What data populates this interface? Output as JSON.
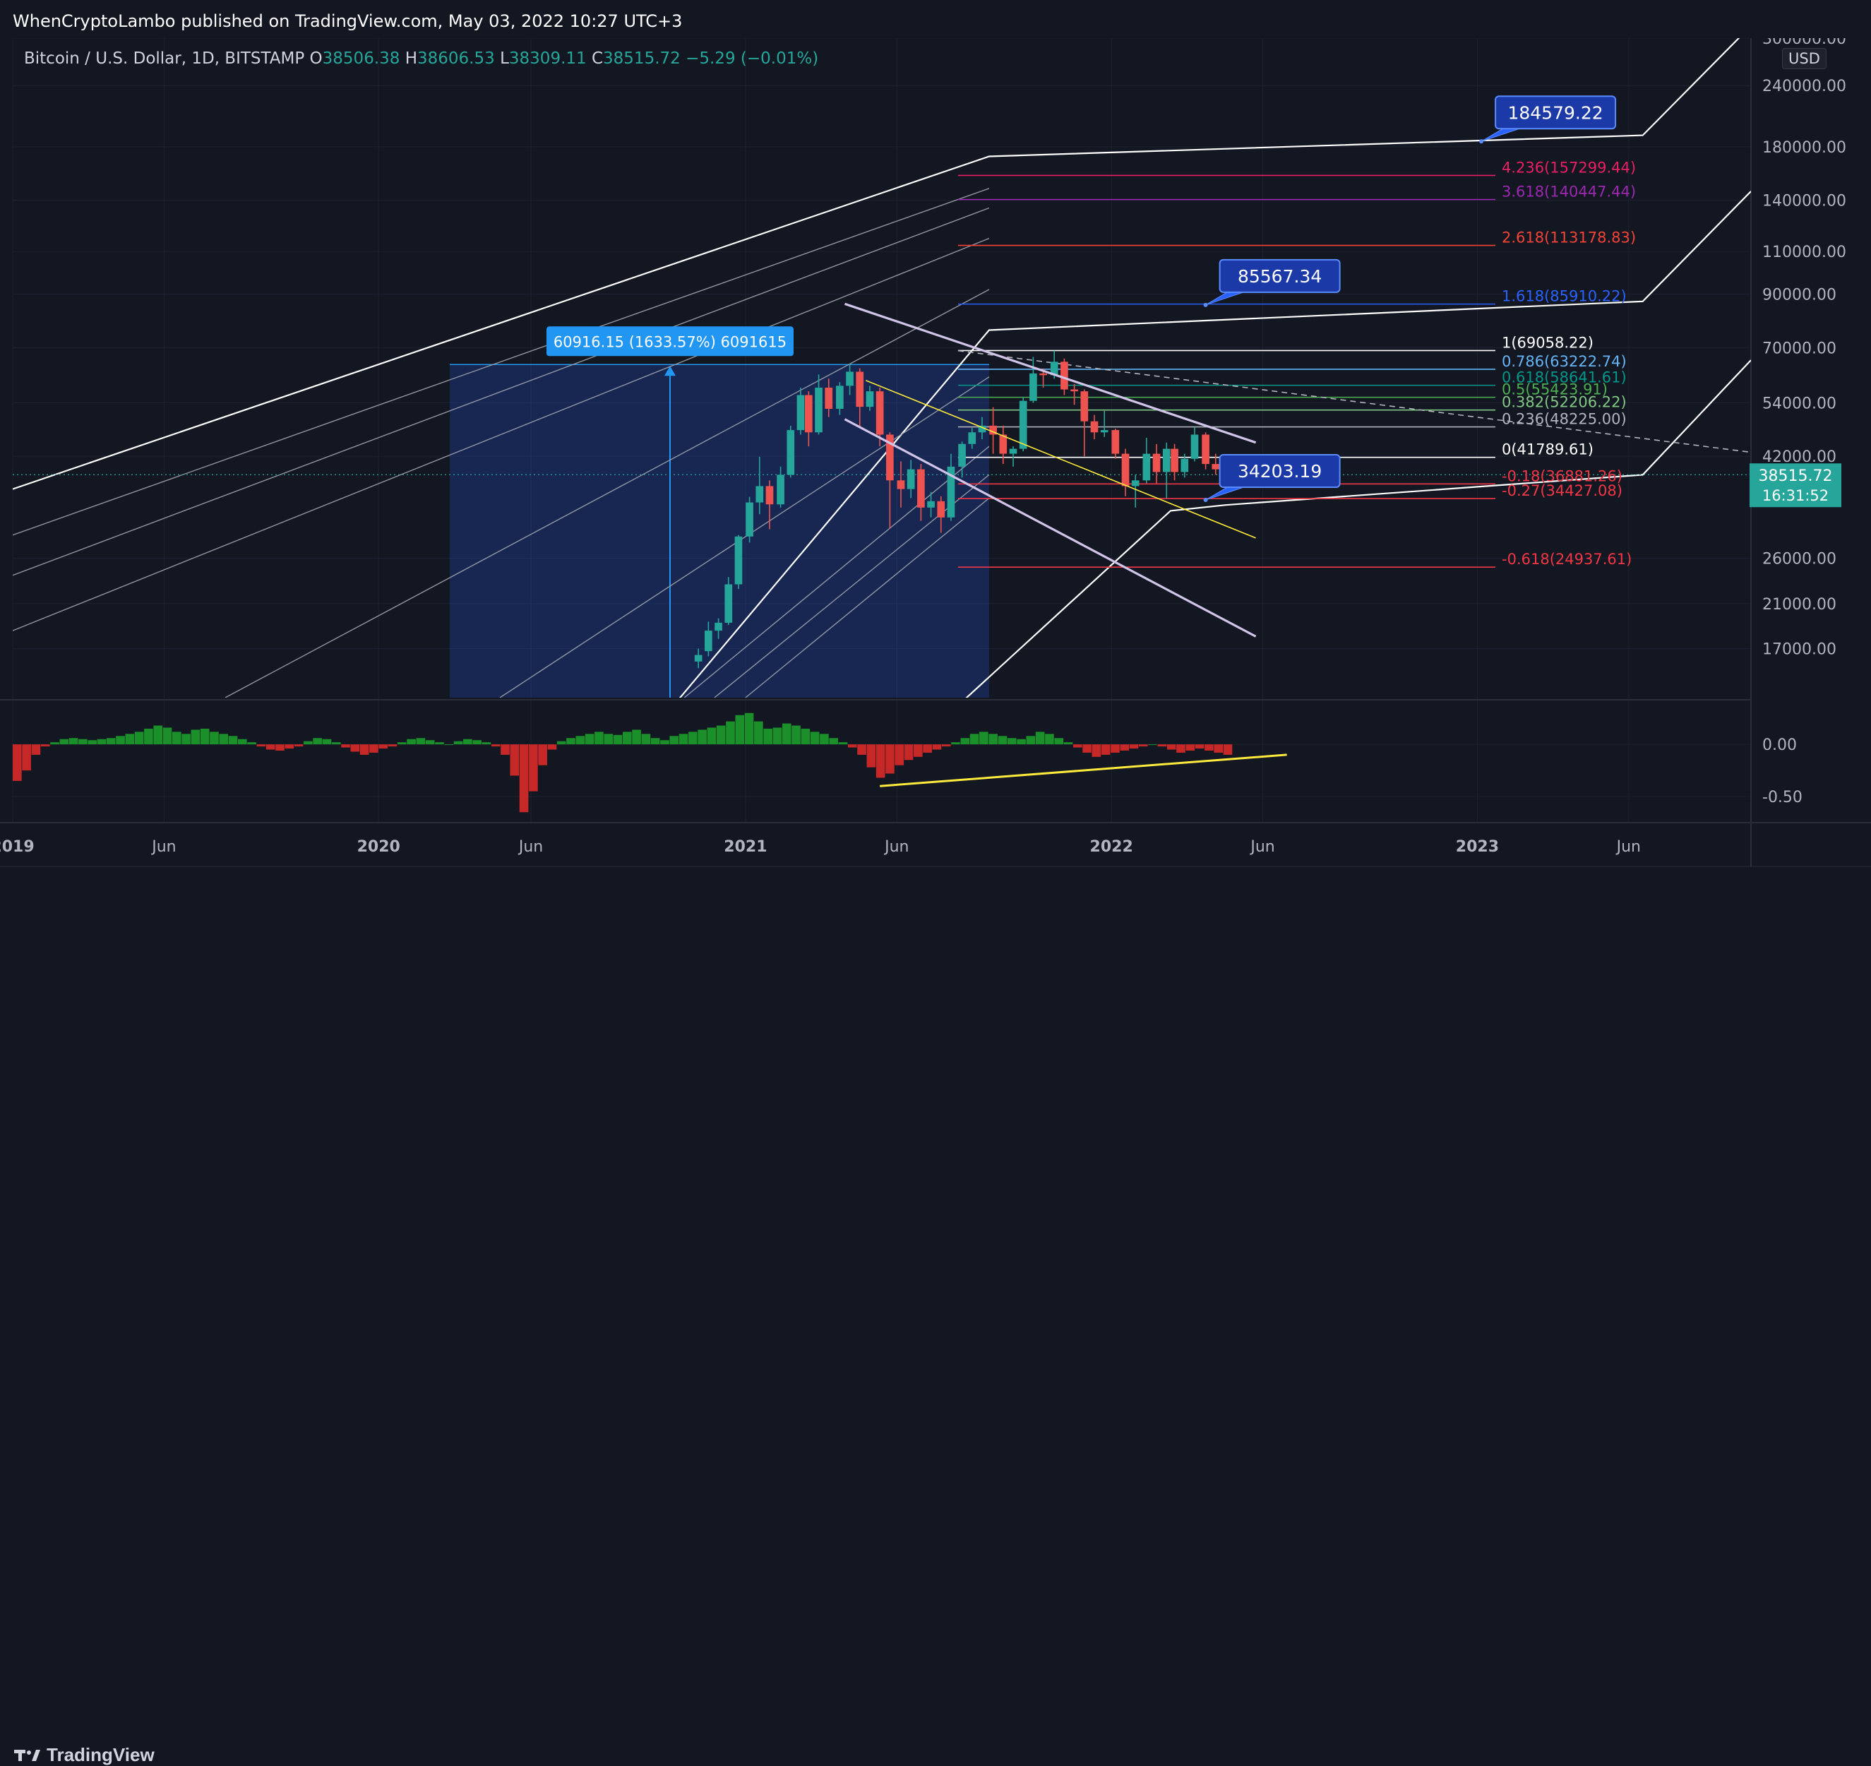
{
  "header": {
    "publisher": "WhenCryptoLambo published on TradingView.com, May 03, 2022 10:27 UTC+3"
  },
  "symbol": {
    "name": "Bitcoin / U.S. Dollar, 1D, BITSTAMP",
    "open_key": "O",
    "open": "38506.38",
    "high_key": "H",
    "high": "38606.53",
    "low_key": "L",
    "low": "38309.11",
    "close_key": "C",
    "close": "38515.72",
    "change": "−5.29 (−0.01%)"
  },
  "currency_label": "USD",
  "footer": {
    "brand": "TradingView"
  },
  "chart_data": {
    "type": "candlestick",
    "price_scale": "log",
    "ylim": [
      13500,
      300000
    ],
    "y_ticks": [
      "300000.00",
      "240000.00",
      "180000.00",
      "140000.00",
      "110000.00",
      "90000.00",
      "70000.00",
      "54000.00",
      "42000.00",
      "26000.00",
      "21000.00",
      "17000.00"
    ],
    "x_range": [
      "2019-01-01",
      "2023-10-01"
    ],
    "x_ticks": [
      {
        "label": "2019",
        "date": "2019-01-01"
      },
      {
        "label": "Jun",
        "date": "2019-06-01"
      },
      {
        "label": "2020",
        "date": "2020-01-01"
      },
      {
        "label": "Jun",
        "date": "2020-06-01"
      },
      {
        "label": "2021",
        "date": "2021-01-01"
      },
      {
        "label": "Jun",
        "date": "2021-06-01"
      },
      {
        "label": "2022",
        "date": "2022-01-01"
      },
      {
        "label": "Jun",
        "date": "2022-06-01"
      },
      {
        "label": "2023",
        "date": "2023-01-01"
      },
      {
        "label": "Jun",
        "date": "2023-06-01"
      }
    ],
    "candles": [
      {
        "date": "2020-11-15",
        "open": 16000,
        "high": 17000,
        "low": 15500,
        "close": 16500
      },
      {
        "date": "2020-11-25",
        "open": 16800,
        "high": 19300,
        "low": 16400,
        "close": 18500
      },
      {
        "date": "2020-12-05",
        "open": 18500,
        "high": 19600,
        "low": 17800,
        "close": 19200
      },
      {
        "date": "2020-12-15",
        "open": 19200,
        "high": 23800,
        "low": 19000,
        "close": 23000
      },
      {
        "date": "2020-12-25",
        "open": 23000,
        "high": 29000,
        "low": 22500,
        "close": 28800
      },
      {
        "date": "2021-01-05",
        "open": 28800,
        "high": 34700,
        "low": 28000,
        "close": 33800
      },
      {
        "date": "2021-01-15",
        "open": 33800,
        "high": 41900,
        "low": 32000,
        "close": 36500
      },
      {
        "date": "2021-01-25",
        "open": 36500,
        "high": 37500,
        "low": 29800,
        "close": 33500
      },
      {
        "date": "2021-02-05",
        "open": 33500,
        "high": 40000,
        "low": 33000,
        "close": 38500
      },
      {
        "date": "2021-02-15",
        "open": 38500,
        "high": 48500,
        "low": 38000,
        "close": 47500
      },
      {
        "date": "2021-02-25",
        "open": 47500,
        "high": 58000,
        "low": 46500,
        "close": 56000
      },
      {
        "date": "2021-03-05",
        "open": 56000,
        "high": 57000,
        "low": 44000,
        "close": 47000
      },
      {
        "date": "2021-03-15",
        "open": 47000,
        "high": 61700,
        "low": 46500,
        "close": 58000
      },
      {
        "date": "2021-03-25",
        "open": 58000,
        "high": 60500,
        "low": 50500,
        "close": 52500
      },
      {
        "date": "2021-04-05",
        "open": 52500,
        "high": 59500,
        "low": 51000,
        "close": 58500
      },
      {
        "date": "2021-04-15",
        "open": 58500,
        "high": 64800,
        "low": 56000,
        "close": 62500
      },
      {
        "date": "2021-04-25",
        "open": 62500,
        "high": 63500,
        "low": 48000,
        "close": 53000
      },
      {
        "date": "2021-05-05",
        "open": 53000,
        "high": 58500,
        "low": 52000,
        "close": 57000
      },
      {
        "date": "2021-05-15",
        "open": 57000,
        "high": 58000,
        "low": 44000,
        "close": 46500
      },
      {
        "date": "2021-05-25",
        "open": 46500,
        "high": 47000,
        "low": 30000,
        "close": 37500
      },
      {
        "date": "2021-06-05",
        "open": 37500,
        "high": 41000,
        "low": 33000,
        "close": 36000
      },
      {
        "date": "2021-06-15",
        "open": 36000,
        "high": 41300,
        "low": 34500,
        "close": 39500
      },
      {
        "date": "2021-06-25",
        "open": 39500,
        "high": 40500,
        "low": 31000,
        "close": 33000
      },
      {
        "date": "2021-07-05",
        "open": 33000,
        "high": 35500,
        "low": 31500,
        "close": 34000
      },
      {
        "date": "2021-07-15",
        "open": 34000,
        "high": 34800,
        "low": 29300,
        "close": 31500
      },
      {
        "date": "2021-07-25",
        "open": 31500,
        "high": 42500,
        "low": 31000,
        "close": 40000
      },
      {
        "date": "2021-08-05",
        "open": 40000,
        "high": 45000,
        "low": 38000,
        "close": 44500
      },
      {
        "date": "2021-08-15",
        "open": 44500,
        "high": 48000,
        "low": 43500,
        "close": 47000
      },
      {
        "date": "2021-08-25",
        "open": 47000,
        "high": 50500,
        "low": 45500,
        "close": 48500
      },
      {
        "date": "2021-09-05",
        "open": 48500,
        "high": 52900,
        "low": 42500,
        "close": 46500
      },
      {
        "date": "2021-09-15",
        "open": 46500,
        "high": 48500,
        "low": 40500,
        "close": 42500
      },
      {
        "date": "2021-09-25",
        "open": 42500,
        "high": 44000,
        "low": 40000,
        "close": 43500
      },
      {
        "date": "2021-10-05",
        "open": 43500,
        "high": 55500,
        "low": 43000,
        "close": 54500
      },
      {
        "date": "2021-10-15",
        "open": 54500,
        "high": 67000,
        "low": 54000,
        "close": 62000
      },
      {
        "date": "2021-10-25",
        "open": 62000,
        "high": 63500,
        "low": 58000,
        "close": 61500
      },
      {
        "date": "2021-11-05",
        "open": 61500,
        "high": 69000,
        "low": 60500,
        "close": 65500
      },
      {
        "date": "2021-11-15",
        "open": 65500,
        "high": 66500,
        "low": 56000,
        "close": 57500
      },
      {
        "date": "2021-11-25",
        "open": 57500,
        "high": 59000,
        "low": 53500,
        "close": 57000
      },
      {
        "date": "2021-12-05",
        "open": 57000,
        "high": 57500,
        "low": 42000,
        "close": 49500
      },
      {
        "date": "2021-12-15",
        "open": 49500,
        "high": 51000,
        "low": 45500,
        "close": 47000
      },
      {
        "date": "2021-12-25",
        "open": 47000,
        "high": 52000,
        "low": 46000,
        "close": 47500
      },
      {
        "date": "2022-01-05",
        "open": 47500,
        "high": 47800,
        "low": 41500,
        "close": 42500
      },
      {
        "date": "2022-01-15",
        "open": 42500,
        "high": 43500,
        "low": 34800,
        "close": 36500
      },
      {
        "date": "2022-01-25",
        "open": 36500,
        "high": 38500,
        "low": 33000,
        "close": 37500
      },
      {
        "date": "2022-02-05",
        "open": 37500,
        "high": 45800,
        "low": 37000,
        "close": 42500
      },
      {
        "date": "2022-02-15",
        "open": 42500,
        "high": 44500,
        "low": 37000,
        "close": 39000
      },
      {
        "date": "2022-02-25",
        "open": 39000,
        "high": 44800,
        "low": 34500,
        "close": 43500
      },
      {
        "date": "2022-03-05",
        "open": 43500,
        "high": 44500,
        "low": 37500,
        "close": 39000
      },
      {
        "date": "2022-03-15",
        "open": 39000,
        "high": 42500,
        "low": 38000,
        "close": 41500
      },
      {
        "date": "2022-03-25",
        "open": 41500,
        "high": 48200,
        "low": 41000,
        "close": 46500
      },
      {
        "date": "2022-04-05",
        "open": 46500,
        "high": 47000,
        "low": 39500,
        "close": 40500
      },
      {
        "date": "2022-04-15",
        "open": 40500,
        "high": 42500,
        "low": 38500,
        "close": 39500
      },
      {
        "date": "2022-04-25",
        "open": 39500,
        "high": 40800,
        "low": 37500,
        "close": 38500
      },
      {
        "date": "2022-05-02",
        "open": 38500,
        "high": 39000,
        "low": 37700,
        "close": 38515
      }
    ],
    "current_price": {
      "value": "38515.72",
      "countdown": "16:31:52",
      "color": "#26a69a"
    },
    "fib_levels": [
      {
        "ratio": "4.236",
        "price": 157299.44,
        "label": "4.236(157299.44)",
        "color": "#e91e63"
      },
      {
        "ratio": "3.618",
        "price": 140447.44,
        "label": "3.618(140447.44)",
        "color": "#9c27b0"
      },
      {
        "ratio": "2.618",
        "price": 113178.83,
        "label": "2.618(113178.83)",
        "color": "#f44336"
      },
      {
        "ratio": "1.618",
        "price": 85910.22,
        "label": "1.618(85910.22)",
        "color": "#2962ff"
      },
      {
        "ratio": "1",
        "price": 69058.22,
        "label": "1(69058.22)",
        "color": "#ffffff"
      },
      {
        "ratio": "0.786",
        "price": 63222.74,
        "label": "0.786(63222.74)",
        "color": "#64b5f6"
      },
      {
        "ratio": "0.618",
        "price": 58641.61,
        "label": "0.618(58641.61)",
        "color": "#009688"
      },
      {
        "ratio": "0.5",
        "price": 55423.91,
        "label": "0.5(55423.91)",
        "color": "#4caf50"
      },
      {
        "ratio": "0.382",
        "price": 52206.22,
        "label": "0.382(52206.22)",
        "color": "#81c784"
      },
      {
        "ratio": "0.236",
        "price": 48225.0,
        "label": "0.236(48225.00)",
        "color": "#b2b5be"
      },
      {
        "ratio": "0",
        "price": 41789.61,
        "label": "0(41789.61)",
        "color": "#ffffff"
      },
      {
        "ratio": "-0.18",
        "price": 36881.26,
        "label": "-0.18(36881.26)",
        "color": "#f23645"
      },
      {
        "ratio": "-0.27",
        "price": 34427.08,
        "label": "-0.27(34427.08)",
        "color": "#f23645"
      },
      {
        "ratio": "-0.618",
        "price": 24937.61,
        "label": "-0.618(24937.61)",
        "color": "#f23645"
      }
    ],
    "fib_extent": {
      "start": "2021-08-01",
      "end": "2023-11-01"
    },
    "callouts": [
      {
        "label": "184579.22",
        "date": "2023-01-05",
        "price": 184579.22
      },
      {
        "label": "85567.34",
        "date": "2022-04-05",
        "price": 85567.34
      },
      {
        "label": "34203.19",
        "date": "2022-04-05",
        "price": 34203.19
      }
    ],
    "measure": {
      "label": "60916.15 (1633.57%) 6091615",
      "start": "2020-03-12",
      "end": "2021-09-01",
      "low": 3729,
      "high": 64645
    },
    "pitchfork_outer": [
      {
        "date": "2019-01-01",
        "price": 36000
      },
      {
        "date": "2021-09-01",
        "price": 172000
      },
      {
        "date": "2023-06-15",
        "price": 190000
      },
      {
        "date": "2023-10-01",
        "price": 318000
      }
    ],
    "pitchfork_middle": [
      {
        "date": "2020-03-01",
        "price": 3500
      },
      {
        "date": "2021-09-01",
        "price": 76000
      },
      {
        "date": "2023-06-15",
        "price": 87000
      },
      {
        "date": "2023-10-01",
        "price": 146000
      }
    ],
    "pitchfork_lower": [
      {
        "date": "2020-10-01",
        "price": 3500
      },
      {
        "date": "2022-03-01",
        "price": 32500
      },
      {
        "date": "2022-04-25",
        "price": 33400
      },
      {
        "date": "2023-06-15",
        "price": 38500
      },
      {
        "date": "2023-10-01",
        "price": 66000
      }
    ],
    "parallel_lines": [
      {
        "from": {
          "date": "2019-01-01",
          "price": 29000
        },
        "to": {
          "date": "2021-09-01",
          "price": 148000
        }
      },
      {
        "from": {
          "date": "2019-01-01",
          "price": 24000
        },
        "to": {
          "date": "2021-09-01",
          "price": 135000
        }
      },
      {
        "from": {
          "date": "2019-01-01",
          "price": 18500
        },
        "to": {
          "date": "2021-09-01",
          "price": 117000
        }
      },
      {
        "from": {
          "date": "2019-08-01",
          "price": 13500
        },
        "to": {
          "date": "2021-09-01",
          "price": 92000
        }
      },
      {
        "from": {
          "date": "2020-05-01",
          "price": 13500
        },
        "to": {
          "date": "2021-09-01",
          "price": 61000
        }
      },
      {
        "from": {
          "date": "2020-11-01",
          "price": 13500
        },
        "to": {
          "date": "2021-09-01",
          "price": 44000
        }
      },
      {
        "from": {
          "date": "2020-12-01",
          "price": 13500
        },
        "to": {
          "date": "2021-09-01",
          "price": 38500
        }
      },
      {
        "from": {
          "date": "2021-01-01",
          "price": 13500
        },
        "to": {
          "date": "2021-09-01",
          "price": 34500
        }
      }
    ],
    "downtrend_lines": [
      {
        "color": "#d1c4e9",
        "from": {
          "date": "2021-04-10",
          "price": 86000
        },
        "to": {
          "date": "2022-05-25",
          "price": 44800
        }
      },
      {
        "color": "#d1c4e9",
        "from": {
          "date": "2021-04-10",
          "price": 50000
        },
        "to": {
          "date": "2022-05-25",
          "price": 18000
        }
      },
      {
        "color": "#ffeb3b",
        "from": {
          "date": "2021-05-01",
          "price": 60000
        },
        "to": {
          "date": "2022-05-25",
          "price": 28600
        }
      }
    ],
    "dashed_projection": {
      "from": {
        "date": "2021-08-01",
        "price": 69000
      },
      "to": {
        "date": "2023-11-01",
        "price": 42000
      }
    },
    "oscillator": {
      "ylim": [
        -0.75,
        0.4
      ],
      "y_ticks": [
        "0.00",
        "-0.50"
      ],
      "start": "2019-01-01",
      "end": "2022-05-02",
      "values": [
        -0.35,
        -0.25,
        -0.1,
        -0.02,
        0.02,
        0.05,
        0.06,
        0.05,
        0.04,
        0.05,
        0.06,
        0.08,
        0.1,
        0.12,
        0.15,
        0.18,
        0.16,
        0.12,
        0.1,
        0.14,
        0.15,
        0.12,
        0.1,
        0.08,
        0.05,
        0.02,
        -0.02,
        -0.05,
        -0.06,
        -0.04,
        -0.02,
        0.03,
        0.06,
        0.05,
        0.02,
        -0.03,
        -0.07,
        -0.1,
        -0.08,
        -0.04,
        -0.02,
        0.02,
        0.05,
        0.06,
        0.04,
        0.02,
        0.0,
        0.03,
        0.05,
        0.04,
        0.02,
        -0.02,
        -0.1,
        -0.3,
        -0.65,
        -0.45,
        -0.2,
        -0.05,
        0.03,
        0.06,
        0.08,
        0.1,
        0.12,
        0.1,
        0.09,
        0.12,
        0.14,
        0.1,
        0.06,
        0.04,
        0.08,
        0.1,
        0.12,
        0.14,
        0.16,
        0.18,
        0.22,
        0.28,
        0.3,
        0.22,
        0.15,
        0.16,
        0.2,
        0.18,
        0.15,
        0.12,
        0.1,
        0.06,
        0.02,
        -0.03,
        -0.1,
        -0.22,
        -0.32,
        -0.28,
        -0.2,
        -0.15,
        -0.12,
        -0.08,
        -0.05,
        -0.02,
        0.02,
        0.06,
        0.1,
        0.12,
        0.1,
        0.08,
        0.06,
        0.05,
        0.08,
        0.12,
        0.1,
        0.06,
        0.02,
        -0.03,
        -0.08,
        -0.12,
        -0.1,
        -0.08,
        -0.06,
        -0.04,
        -0.02,
        0.0,
        -0.02,
        -0.05,
        -0.08,
        -0.06,
        -0.04,
        -0.06,
        -0.08,
        -0.1
      ],
      "trendline": {
        "from": {
          "date": "2021-05-15",
          "value": -0.4
        },
        "to": {
          "date": "2022-06-25",
          "value": -0.1
        }
      },
      "colors": {
        "positive": "#1b8f2a",
        "negative": "#c62828",
        "trend": "#ffeb3b"
      }
    }
  }
}
